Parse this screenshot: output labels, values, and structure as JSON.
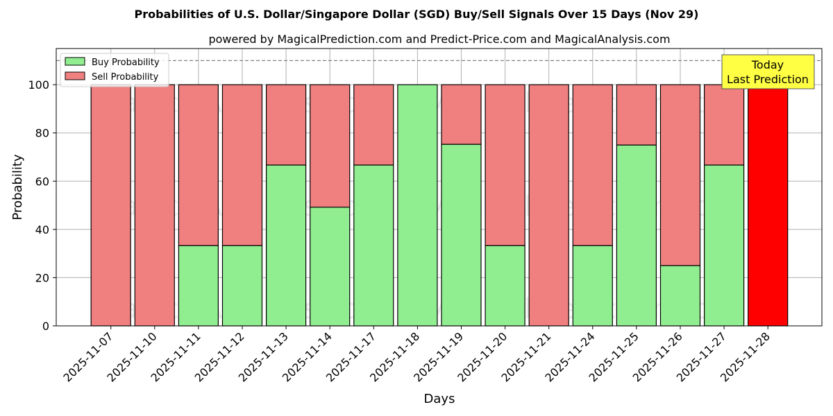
{
  "chart_data": {
    "type": "bar",
    "stacked": true,
    "title": "Probabilities of U.S. Dollar/Singapore Dollar (SGD) Buy/Sell Signals Over 15 Days (Nov 29)",
    "subtitle": "powered by MagicalPrediction.com and Predict-Price.com and MagicalAnalysis.com",
    "xlabel": "Days",
    "ylabel": "Probability",
    "ylim": [
      0,
      115
    ],
    "yticks": [
      0,
      20,
      40,
      60,
      80,
      100
    ],
    "reference_line": 110,
    "grid": true,
    "legend_position": "top-left",
    "categories": [
      "2025-11-07",
      "2025-11-10",
      "2025-11-11",
      "2025-11-12",
      "2025-11-13",
      "2025-11-14",
      "2025-11-17",
      "2025-11-18",
      "2025-11-19",
      "2025-11-20",
      "2025-11-21",
      "2025-11-24",
      "2025-11-25",
      "2025-11-26",
      "2025-11-27",
      "2025-11-28"
    ],
    "series": [
      {
        "name": "Buy Probability",
        "color": "#90ee90",
        "values": [
          0,
          0,
          33.3,
          33.3,
          66.7,
          49.2,
          66.7,
          100,
          75.3,
          33.3,
          0,
          33.3,
          75,
          25,
          66.7,
          0
        ]
      },
      {
        "name": "Sell Probability",
        "color": "#f08080",
        "values": [
          100,
          100,
          66.7,
          66.7,
          33.3,
          50.8,
          33.3,
          0,
          24.7,
          66.7,
          100,
          66.7,
          25,
          75,
          33.3,
          100
        ]
      }
    ],
    "highlight": {
      "index": 15,
      "color": "#ff0000",
      "label_lines": [
        "Today",
        "Last Prediction"
      ],
      "box_color": "#ffff44"
    },
    "watermarks": [
      "MagicalAnalysis.com",
      "MagicalPrediction.com"
    ]
  }
}
